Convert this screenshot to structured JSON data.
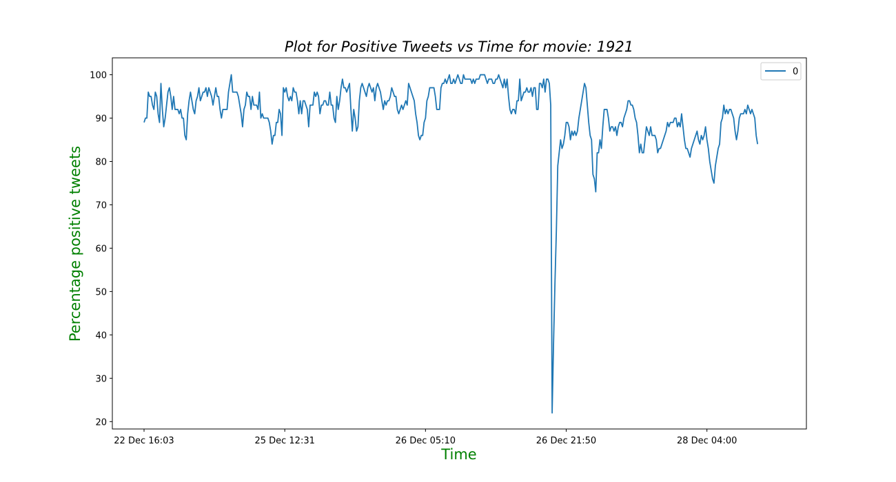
{
  "chart_data": {
    "type": "line",
    "title": "Plot for Positive Tweets vs Time for movie: 1921",
    "xlabel": "Time",
    "ylabel": "Percentage positive tweets",
    "label_color": "#008000",
    "line_color": "#1f77b4",
    "ylim": [
      18.3,
      103.9
    ],
    "y_ticks": [
      20,
      30,
      40,
      50,
      60,
      70,
      80,
      90,
      100
    ],
    "x_tick_labels": [
      "22 Dec 16:03",
      "25 Dec 12:31",
      "26 Dec 05:10",
      "26 Dec 21:50",
      "28 Dec 04:00"
    ],
    "x_tick_index": [
      0,
      100,
      200,
      300,
      400
    ],
    "legend": {
      "position": "upper right",
      "entries": [
        "0"
      ]
    },
    "grid": false,
    "series": [
      {
        "name": "0",
        "values": [
          89,
          90,
          90,
          96,
          95,
          95,
          93,
          92,
          96,
          95,
          91,
          89,
          98,
          92,
          88,
          90,
          93,
          96,
          97,
          95,
          92,
          95,
          92,
          92,
          92,
          91,
          92,
          90,
          90,
          86,
          85,
          91,
          94,
          96,
          94,
          92,
          91,
          94,
          95,
          97,
          94,
          95,
          96,
          96,
          97,
          95,
          97,
          96,
          95,
          93,
          95,
          97,
          95,
          95,
          92,
          90,
          92,
          92,
          92,
          92,
          96,
          98,
          100,
          96,
          96,
          96,
          96,
          95,
          93,
          91,
          88,
          92,
          93,
          96,
          95,
          95,
          92,
          95,
          93,
          93,
          93,
          92,
          96,
          90,
          91,
          90,
          90,
          90,
          90,
          89,
          87,
          84,
          86,
          86,
          89,
          89,
          92,
          91,
          86,
          97,
          96,
          97,
          95,
          94,
          95,
          94,
          97,
          96,
          96,
          94,
          91,
          94,
          91,
          94,
          94,
          93,
          92,
          88,
          93,
          93,
          93,
          96,
          95,
          96,
          95,
          91,
          93,
          93,
          94,
          94,
          93,
          93,
          96,
          93,
          93,
          90,
          89,
          95,
          92,
          94,
          97,
          99,
          97,
          97,
          96,
          97,
          98,
          92,
          87,
          92,
          90,
          87,
          88,
          94,
          97,
          98,
          97,
          96,
          95,
          97,
          98,
          97,
          96,
          97,
          94,
          97,
          98,
          97,
          96,
          94,
          92,
          94,
          93,
          94,
          94,
          95,
          97,
          96,
          95,
          95,
          92,
          91,
          92,
          93,
          92,
          93,
          94,
          93,
          98,
          97,
          96,
          95,
          94,
          91,
          89,
          86,
          85,
          86,
          86,
          89,
          90,
          94,
          95,
          97,
          97,
          97,
          97,
          95,
          92,
          92,
          92,
          97,
          98,
          98,
          99,
          98,
          99,
          100,
          98,
          98,
          99,
          98,
          99,
          100,
          99,
          98,
          98,
          100,
          99,
          99,
          99,
          99,
          99,
          98,
          99,
          98,
          99,
          99,
          99,
          100,
          100,
          100,
          100,
          99,
          98,
          99,
          99,
          99,
          98,
          98,
          99,
          99,
          100,
          99,
          98,
          97,
          99,
          97,
          99,
          95,
          92,
          91,
          92,
          92,
          91,
          94,
          94,
          99,
          94,
          95,
          96,
          96,
          97,
          96,
          96,
          97,
          95,
          97,
          97,
          92,
          92,
          98,
          98,
          97,
          99,
          96,
          99,
          99,
          98,
          93,
          22,
          38,
          52,
          64,
          79,
          82,
          85,
          83,
          84,
          86,
          89,
          89,
          88,
          85,
          87,
          86,
          87,
          86,
          87,
          90,
          92,
          94,
          96,
          98,
          97,
          93,
          89,
          86,
          85,
          77,
          76,
          73,
          82,
          82,
          85,
          83,
          88,
          92,
          92,
          92,
          90,
          87,
          88,
          88,
          87,
          88,
          86,
          88,
          89,
          89,
          88,
          90,
          91,
          92,
          94,
          94,
          93,
          93,
          92,
          90,
          89,
          86,
          82,
          84,
          82,
          82,
          85,
          88,
          87,
          86,
          88,
          86,
          86,
          86,
          85,
          82,
          83,
          83,
          84,
          85,
          86,
          87,
          89,
          88,
          89,
          89,
          89,
          90,
          90,
          88,
          89,
          88,
          91,
          88,
          85,
          83,
          83,
          82,
          81,
          83,
          84,
          85,
          86,
          87,
          85,
          84,
          86,
          85,
          86,
          88,
          85,
          83,
          80,
          78,
          76,
          75,
          79,
          81,
          83,
          84,
          89,
          90,
          93,
          91,
          92,
          91,
          92,
          92,
          91,
          90,
          87,
          85,
          87,
          90,
          91,
          91,
          91,
          92,
          91,
          93,
          92,
          91,
          92,
          91,
          90,
          86,
          84
        ]
      }
    ]
  }
}
